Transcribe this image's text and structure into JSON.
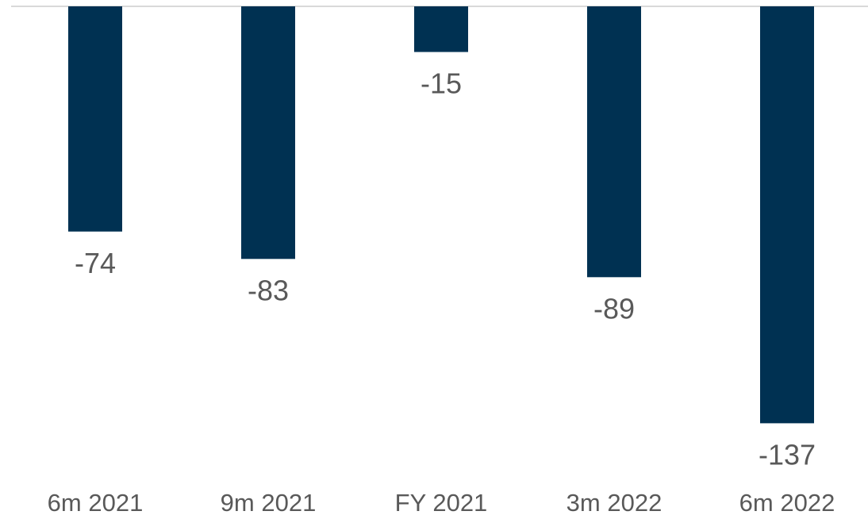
{
  "chart_data": {
    "type": "bar",
    "title": "",
    "xlabel": "",
    "ylabel": "",
    "categories": [
      "6m 2021",
      "9m 2021",
      "FY 2021",
      "3m 2022",
      "6m 2022"
    ],
    "series": [
      {
        "values": [
          -74,
          -83,
          -15,
          -89,
          -137
        ]
      }
    ],
    "data_labels": [
      "-74",
      "-83",
      "-15",
      "-89",
      "-137"
    ],
    "ylim": [
      -150,
      0
    ],
    "grid": false,
    "legend": "none",
    "colors": {
      "bar": "#003152",
      "axis_line": "#D9D9D9",
      "label_text": "#595959"
    }
  }
}
